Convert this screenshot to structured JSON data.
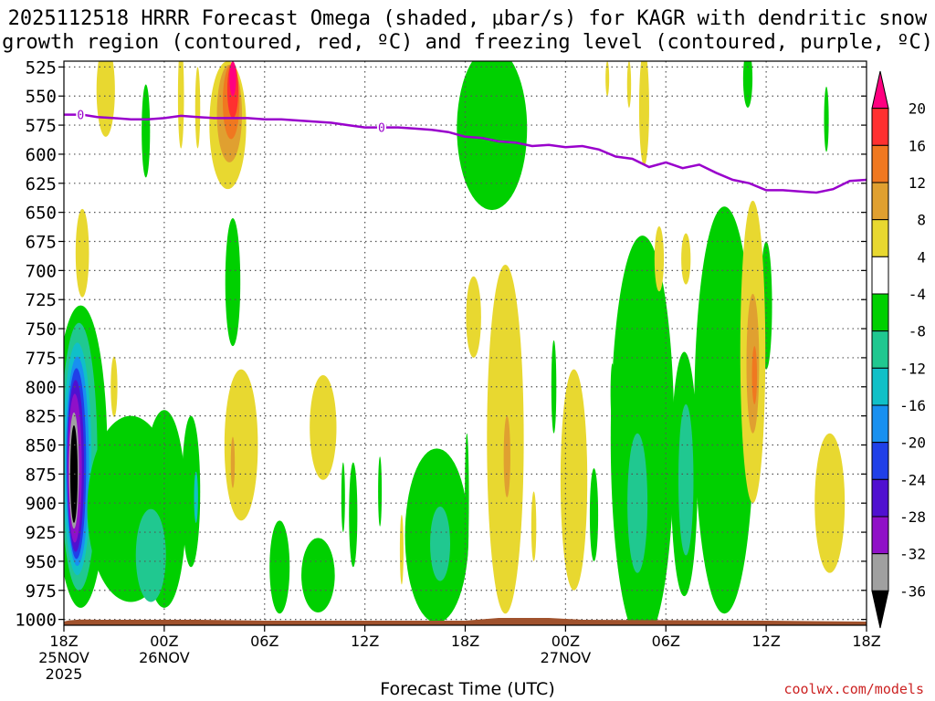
{
  "chart_data": {
    "type": "heatmap",
    "title_line1": "2025112518 HRRR Forecast Omega (shaded, μbar/s) for KAGR with dendritic snow",
    "title_line2": "growth region (contoured, red, ºC) and freezing level (contoured, purple, ºC)",
    "xlabel": "Forecast Time (UTC)",
    "y_ticks": [
      525,
      550,
      575,
      600,
      625,
      650,
      675,
      700,
      725,
      750,
      775,
      800,
      825,
      850,
      875,
      900,
      925,
      950,
      975,
      1000
    ],
    "y_range": [
      520,
      1005
    ],
    "x_range_hours": [
      0,
      48
    ],
    "x_ticks": [
      {
        "hour": 0,
        "time": "18Z",
        "date": "25NOV",
        "year": "2025"
      },
      {
        "hour": 6,
        "time": "00Z",
        "date": "26NOV",
        "year": ""
      },
      {
        "hour": 12,
        "time": "06Z",
        "date": "",
        "year": ""
      },
      {
        "hour": 18,
        "time": "12Z",
        "date": "",
        "year": ""
      },
      {
        "hour": 24,
        "time": "18Z",
        "date": "",
        "year": ""
      },
      {
        "hour": 30,
        "time": "00Z",
        "date": "27NOV",
        "year": ""
      },
      {
        "hour": 36,
        "time": "06Z",
        "date": "",
        "year": ""
      },
      {
        "hour": 42,
        "time": "12Z",
        "date": "",
        "year": ""
      },
      {
        "hour": 48,
        "time": "18Z",
        "date": "",
        "year": ""
      }
    ],
    "colorbar": {
      "labels": [
        20,
        16,
        12,
        8,
        4,
        -4,
        -8,
        -12,
        -16,
        -20,
        -24,
        -28,
        -32,
        -36
      ],
      "bins": [
        {
          "from": 20,
          "to": 24,
          "color": "#ff0080"
        },
        {
          "from": 16,
          "to": 20,
          "color": "#ff3030"
        },
        {
          "from": 12,
          "to": 16,
          "color": "#f07820"
        },
        {
          "from": 8,
          "to": 12,
          "color": "#e0a030"
        },
        {
          "from": 4,
          "to": 8,
          "color": "#e8d830"
        },
        {
          "from": -4,
          "to": 4,
          "color": "#ffffff"
        },
        {
          "from": -8,
          "to": -4,
          "color": "#00d000"
        },
        {
          "from": -12,
          "to": -8,
          "color": "#20c890"
        },
        {
          "from": -16,
          "to": -12,
          "color": "#10c0c8"
        },
        {
          "from": -20,
          "to": -16,
          "color": "#1890f0"
        },
        {
          "from": -24,
          "to": -20,
          "color": "#2040e8"
        },
        {
          "from": -28,
          "to": -24,
          "color": "#5010d0"
        },
        {
          "from": -32,
          "to": -28,
          "color": "#9010c8"
        },
        {
          "from": -36,
          "to": -32,
          "color": "#a0a0a0"
        },
        {
          "from": -40,
          "to": -36,
          "color": "#000000"
        }
      ]
    },
    "freezing_level": {
      "color": "#9900cc",
      "points": [
        [
          0,
          566
        ],
        [
          1.1,
          566
        ],
        [
          2,
          568
        ],
        [
          3,
          569
        ],
        [
          4,
          570
        ],
        [
          5,
          570
        ],
        [
          6,
          569
        ],
        [
          7,
          567
        ],
        [
          8,
          568
        ],
        [
          9,
          569
        ],
        [
          10,
          569
        ],
        [
          11,
          569
        ],
        [
          12,
          570
        ],
        [
          13,
          570
        ],
        [
          14,
          571
        ],
        [
          15,
          572
        ],
        [
          16,
          573
        ],
        [
          17,
          575
        ],
        [
          18,
          577
        ],
        [
          19,
          577
        ],
        [
          20,
          577
        ],
        [
          21,
          578
        ],
        [
          22,
          579
        ],
        [
          23,
          581
        ],
        [
          24,
          585
        ],
        [
          25,
          586
        ],
        [
          26,
          589
        ],
        [
          27,
          590
        ],
        [
          28,
          593
        ],
        [
          29,
          592
        ],
        [
          30,
          594
        ],
        [
          31,
          593
        ],
        [
          32,
          596
        ],
        [
          33,
          602
        ],
        [
          34,
          604
        ],
        [
          35,
          611
        ],
        [
          36,
          607
        ],
        [
          37,
          612
        ],
        [
          38,
          609
        ],
        [
          39,
          616
        ],
        [
          40,
          622
        ],
        [
          41,
          625
        ],
        [
          42,
          631
        ],
        [
          43,
          631
        ],
        [
          44,
          632
        ],
        [
          45,
          633
        ],
        [
          46,
          630
        ],
        [
          47,
          623
        ],
        [
          48,
          622
        ]
      ]
    },
    "freezing_level_labels": [
      {
        "hour": 1.0,
        "value": "0"
      },
      {
        "hour": 19.0,
        "value": "0"
      }
    ],
    "omega_shading": [
      {
        "color": "#00d000",
        "cx": 1.0,
        "cy": 860,
        "rx": 1.6,
        "ry": 130
      },
      {
        "color": "#20c890",
        "cx": 0.9,
        "cy": 860,
        "rx": 1.1,
        "ry": 115
      },
      {
        "color": "#10c0c8",
        "cx": 0.8,
        "cy": 862,
        "rx": 0.85,
        "ry": 100
      },
      {
        "color": "#1890f0",
        "cx": 0.8,
        "cy": 864,
        "rx": 0.7,
        "ry": 90
      },
      {
        "color": "#2040e8",
        "cx": 0.75,
        "cy": 866,
        "rx": 0.58,
        "ry": 82
      },
      {
        "color": "#5010d0",
        "cx": 0.7,
        "cy": 868,
        "rx": 0.5,
        "ry": 74
      },
      {
        "color": "#9010c8",
        "cx": 0.65,
        "cy": 870,
        "rx": 0.42,
        "ry": 64
      },
      {
        "color": "#a0a0a0",
        "cx": 0.6,
        "cy": 872,
        "rx": 0.3,
        "ry": 50
      },
      {
        "color": "#000000",
        "cx": 0.6,
        "cy": 875,
        "rx": 0.22,
        "ry": 42
      },
      {
        "color": "#00d000",
        "cx": 4.0,
        "cy": 905,
        "rx": 2.6,
        "ry": 80
      },
      {
        "color": "#00d000",
        "cx": 6.0,
        "cy": 905,
        "rx": 1.3,
        "ry": 85
      },
      {
        "color": "#20c890",
        "cx": 5.2,
        "cy": 945,
        "rx": 0.9,
        "ry": 40
      },
      {
        "color": "#00d000",
        "cx": 7.6,
        "cy": 890,
        "rx": 0.55,
        "ry": 65
      },
      {
        "color": "#10c0c8",
        "cx": 7.9,
        "cy": 895,
        "rx": 0.12,
        "ry": 22
      },
      {
        "color": "#00d000",
        "cx": 4.9,
        "cy": 580,
        "rx": 0.25,
        "ry": 40
      },
      {
        "color": "#00d000",
        "cx": 10.1,
        "cy": 710,
        "rx": 0.45,
        "ry": 55
      },
      {
        "color": "#00d000",
        "cx": 15.2,
        "cy": 962,
        "rx": 1.0,
        "ry": 32
      },
      {
        "color": "#00d000",
        "cx": 18.9,
        "cy": 890,
        "rx": 0.1,
        "ry": 30
      },
      {
        "color": "#00d000",
        "cx": 22.3,
        "cy": 928,
        "rx": 1.9,
        "ry": 75
      },
      {
        "color": "#20c890",
        "cx": 22.5,
        "cy": 935,
        "rx": 0.6,
        "ry": 32
      },
      {
        "color": "#00d000",
        "cx": 24.1,
        "cy": 895,
        "rx": 0.12,
        "ry": 55
      },
      {
        "color": "#00d000",
        "cx": 25.6,
        "cy": 578,
        "rx": 2.1,
        "ry": 70
      },
      {
        "color": "#00d000",
        "cx": 29.3,
        "cy": 800,
        "rx": 0.15,
        "ry": 40
      },
      {
        "color": "#00d000",
        "cx": 32.8,
        "cy": 805,
        "rx": 0.1,
        "ry": 25
      },
      {
        "color": "#00d000",
        "cx": 34.6,
        "cy": 845,
        "rx": 1.9,
        "ry": 175
      },
      {
        "color": "#20c890",
        "cx": 34.3,
        "cy": 900,
        "rx": 0.6,
        "ry": 60
      },
      {
        "color": "#00d000",
        "cx": 37.1,
        "cy": 875,
        "rx": 0.8,
        "ry": 105
      },
      {
        "color": "#20c890",
        "cx": 37.2,
        "cy": 880,
        "rx": 0.45,
        "ry": 65
      },
      {
        "color": "#00d000",
        "cx": 39.5,
        "cy": 820,
        "rx": 1.8,
        "ry": 175
      },
      {
        "color": "#00d000",
        "cx": 42.0,
        "cy": 730,
        "rx": 0.35,
        "ry": 55
      },
      {
        "color": "#00d000",
        "cx": 40.9,
        "cy": 535,
        "rx": 0.28,
        "ry": 25
      },
      {
        "color": "#00d000",
        "cx": 45.6,
        "cy": 570,
        "rx": 0.14,
        "ry": 28
      },
      {
        "color": "#00d000",
        "cx": 12.9,
        "cy": 955,
        "rx": 0.6,
        "ry": 40
      },
      {
        "color": "#00d000",
        "cx": 16.7,
        "cy": 895,
        "rx": 0.08,
        "ry": 30
      },
      {
        "color": "#00d000",
        "cx": 17.3,
        "cy": 910,
        "rx": 0.25,
        "ry": 45
      },
      {
        "color": "#00d000",
        "cx": 33.2,
        "cy": 915,
        "rx": 0.12,
        "ry": 40
      },
      {
        "color": "#00d000",
        "cx": 31.7,
        "cy": 910,
        "rx": 0.25,
        "ry": 40
      },
      {
        "color": "#e8d830",
        "cx": 2.5,
        "cy": 545,
        "rx": 0.55,
        "ry": 40
      },
      {
        "color": "#e8d830",
        "cx": 1.1,
        "cy": 685,
        "rx": 0.4,
        "ry": 38
      },
      {
        "color": "#e8d830",
        "cx": 3.0,
        "cy": 800,
        "rx": 0.2,
        "ry": 26
      },
      {
        "color": "#e8d830",
        "cx": 7.0,
        "cy": 550,
        "rx": 0.18,
        "ry": 45
      },
      {
        "color": "#e8d830",
        "cx": 8.0,
        "cy": 560,
        "rx": 0.15,
        "ry": 35
      },
      {
        "color": "#e8d830",
        "cx": 9.8,
        "cy": 575,
        "rx": 1.1,
        "ry": 55
      },
      {
        "color": "#e0a030",
        "cx": 9.9,
        "cy": 565,
        "rx": 0.75,
        "ry": 42
      },
      {
        "color": "#f07820",
        "cx": 10.0,
        "cy": 555,
        "rx": 0.5,
        "ry": 32
      },
      {
        "color": "#ff3030",
        "cx": 10.1,
        "cy": 545,
        "rx": 0.33,
        "ry": 24
      },
      {
        "color": "#ff0080",
        "cx": 10.1,
        "cy": 535,
        "rx": 0.2,
        "ry": 15
      },
      {
        "color": "#e8d830",
        "cx": 10.6,
        "cy": 850,
        "rx": 1.0,
        "ry": 65
      },
      {
        "color": "#e0a030",
        "cx": 10.1,
        "cy": 865,
        "rx": 0.12,
        "ry": 22
      },
      {
        "color": "#e8d830",
        "cx": 15.5,
        "cy": 835,
        "rx": 0.8,
        "ry": 45
      },
      {
        "color": "#e8d830",
        "cx": 24.5,
        "cy": 740,
        "rx": 0.45,
        "ry": 35
      },
      {
        "color": "#e8d830",
        "cx": 26.4,
        "cy": 845,
        "rx": 1.1,
        "ry": 150
      },
      {
        "color": "#e0a030",
        "cx": 26.5,
        "cy": 860,
        "rx": 0.2,
        "ry": 35
      },
      {
        "color": "#e8d830",
        "cx": 30.5,
        "cy": 880,
        "rx": 0.8,
        "ry": 95
      },
      {
        "color": "#e8d830",
        "cx": 25.9,
        "cy": 890,
        "rx": 0.12,
        "ry": 30
      },
      {
        "color": "#e8d830",
        "cx": 20.2,
        "cy": 940,
        "rx": 0.1,
        "ry": 30
      },
      {
        "color": "#e8d830",
        "cx": 28.1,
        "cy": 920,
        "rx": 0.15,
        "ry": 30
      },
      {
        "color": "#e8d830",
        "cx": 34.7,
        "cy": 560,
        "rx": 0.3,
        "ry": 50
      },
      {
        "color": "#e8d830",
        "cx": 32.5,
        "cy": 535,
        "rx": 0.1,
        "ry": 15
      },
      {
        "color": "#e8d830",
        "cx": 35.6,
        "cy": 690,
        "rx": 0.28,
        "ry": 28
      },
      {
        "color": "#e8d830",
        "cx": 37.2,
        "cy": 690,
        "rx": 0.28,
        "ry": 22
      },
      {
        "color": "#e8d830",
        "cx": 41.2,
        "cy": 770,
        "rx": 0.75,
        "ry": 130
      },
      {
        "color": "#e0a030",
        "cx": 41.2,
        "cy": 780,
        "rx": 0.38,
        "ry": 60
      },
      {
        "color": "#f07820",
        "cx": 41.3,
        "cy": 790,
        "rx": 0.15,
        "ry": 25
      },
      {
        "color": "#e8d830",
        "cx": 45.8,
        "cy": 900,
        "rx": 0.9,
        "ry": 60
      },
      {
        "color": "#e8d830",
        "cx": 33.8,
        "cy": 540,
        "rx": 0.12,
        "ry": 20
      }
    ],
    "terrain_color": "#a0522d"
  },
  "footer": {
    "credit": "coolwx.com/models"
  }
}
